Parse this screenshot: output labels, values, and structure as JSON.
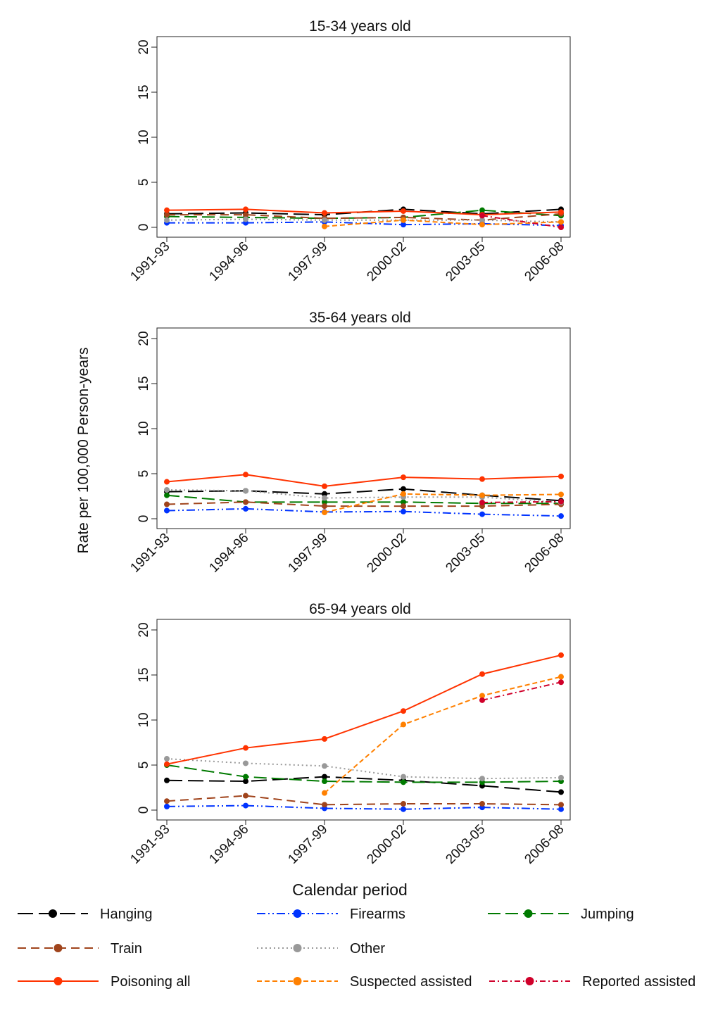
{
  "chart_data": {
    "type": "line",
    "ylabel": "Rate per 100,000 Person-years",
    "xlabel": "Calendar period",
    "categories": [
      "1991-93",
      "1994-96",
      "1997-99",
      "2000-02",
      "2003-05",
      "2006-08"
    ],
    "ylim": [
      0,
      20
    ],
    "yticks": [
      0,
      5,
      10,
      15,
      20
    ],
    "grid": false,
    "legend_position": "bottom",
    "series_styles": [
      {
        "name": "Hanging",
        "color": "#000000",
        "dash": "22 8"
      },
      {
        "name": "Firearms",
        "color": "#0033ff",
        "dash": "12 4 2 4 2 4"
      },
      {
        "name": "Jumping",
        "color": "#007a00",
        "dash": "18 7"
      },
      {
        "name": "Train",
        "color": "#a0441c",
        "dash": "12 7"
      },
      {
        "name": "Other",
        "color": "#999999",
        "dash": "2 4"
      },
      {
        "name": "Poisoning all",
        "color": "#ff3300",
        "dash": ""
      },
      {
        "name": "Suspected assisted",
        "color": "#ff8000",
        "dash": "7 4"
      },
      {
        "name": "Reported assisted",
        "color": "#d0002a",
        "dash": "8 4 2 4"
      }
    ],
    "panels": [
      {
        "title": "15-34 years old",
        "series": [
          {
            "name": "Hanging",
            "values": [
              1.5,
              1.6,
              1.4,
              2.0,
              1.5,
              2.0
            ]
          },
          {
            "name": "Firearms",
            "values": [
              0.5,
              0.5,
              0.6,
              0.3,
              0.4,
              0.2
            ]
          },
          {
            "name": "Jumping",
            "values": [
              1.2,
              1.1,
              1.0,
              1.1,
              1.9,
              1.3
            ]
          },
          {
            "name": "Train",
            "values": [
              1.4,
              1.4,
              1.0,
              1.1,
              0.8,
              1.5
            ]
          },
          {
            "name": "Other",
            "values": [
              0.8,
              0.9,
              0.8,
              0.8,
              0.8,
              0.6
            ]
          },
          {
            "name": "Poisoning all",
            "values": [
              1.9,
              2.0,
              1.6,
              1.8,
              1.4,
              1.7
            ]
          },
          {
            "name": "Suspected assisted",
            "values": [
              null,
              null,
              0.1,
              0.8,
              0.3,
              0.6
            ]
          },
          {
            "name": "Reported assisted",
            "values": [
              null,
              null,
              null,
              null,
              1.3,
              0.0
            ]
          }
        ]
      },
      {
        "title": "35-64 years old",
        "series": [
          {
            "name": "Hanging",
            "values": [
              3.0,
              3.1,
              2.75,
              3.3,
              2.6,
              2.0
            ]
          },
          {
            "name": "Firearms",
            "values": [
              0.9,
              1.1,
              0.75,
              0.8,
              0.5,
              0.3
            ]
          },
          {
            "name": "Jumping",
            "values": [
              2.6,
              1.85,
              1.85,
              1.85,
              1.7,
              1.7
            ]
          },
          {
            "name": "Train",
            "values": [
              1.6,
              1.85,
              1.4,
              1.4,
              1.4,
              1.6
            ]
          },
          {
            "name": "Other",
            "values": [
              3.2,
              3.1,
              2.3,
              2.4,
              2.4,
              1.8
            ]
          },
          {
            "name": "Poisoning all",
            "values": [
              4.1,
              4.9,
              3.6,
              4.6,
              4.4,
              4.7
            ]
          },
          {
            "name": "Suspected assisted",
            "values": [
              null,
              null,
              0.7,
              2.75,
              2.6,
              2.7
            ]
          },
          {
            "name": "Reported assisted",
            "values": [
              null,
              null,
              null,
              null,
              1.8,
              1.9
            ]
          }
        ]
      },
      {
        "title": "65-94 years old",
        "series": [
          {
            "name": "Hanging",
            "values": [
              3.3,
              3.2,
              3.7,
              3.3,
              2.7,
              2.0
            ]
          },
          {
            "name": "Firearms",
            "values": [
              0.4,
              0.5,
              0.2,
              0.1,
              0.3,
              0.1
            ]
          },
          {
            "name": "Jumping",
            "values": [
              5.0,
              3.7,
              3.2,
              3.1,
              3.1,
              3.2
            ]
          },
          {
            "name": "Train",
            "values": [
              1.0,
              1.6,
              0.6,
              0.7,
              0.7,
              0.6
            ]
          },
          {
            "name": "Other",
            "values": [
              5.7,
              5.2,
              4.9,
              3.7,
              3.5,
              3.6
            ]
          },
          {
            "name": "Poisoning all",
            "values": [
              5.1,
              6.9,
              7.9,
              11.0,
              15.1,
              17.2
            ]
          },
          {
            "name": "Suspected assisted",
            "values": [
              null,
              null,
              1.9,
              9.5,
              12.7,
              14.8
            ]
          },
          {
            "name": "Reported assisted",
            "values": [
              null,
              null,
              null,
              null,
              12.2,
              14.2
            ]
          }
        ]
      }
    ]
  }
}
